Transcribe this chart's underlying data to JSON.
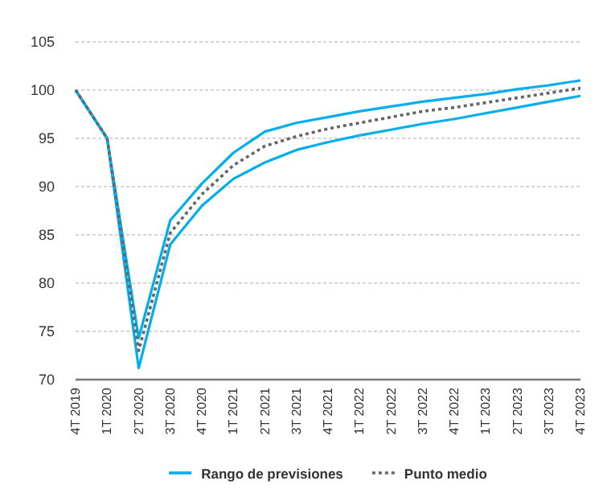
{
  "chart_data": {
    "type": "line",
    "categories": [
      "4T 2019",
      "1T 2020",
      "2T 2020",
      "3T 2020",
      "4T 2020",
      "1T 2021",
      "2T 2021",
      "3T 2021",
      "4T 2021",
      "1T 2022",
      "2T 2022",
      "3T 2022",
      "4T 2022",
      "1T 2023",
      "2T 2023",
      "3T 2023",
      "4T 2023"
    ],
    "series": [
      {
        "name": "Rango de previsiones",
        "color": "#00aeef",
        "line_style": "solid",
        "values": [
          100,
          95,
          74.3,
          86.5,
          90.3,
          93.5,
          95.7,
          96.6,
          97.2,
          97.8,
          98.3,
          98.8,
          99.2,
          99.6,
          100.1,
          100.5,
          101
        ]
      },
      {
        "color": "#00aeef",
        "line_style": "solid",
        "values": [
          100,
          95,
          71.2,
          84,
          88,
          90.8,
          92.5,
          93.8,
          94.6,
          95.3,
          95.9,
          96.5,
          97,
          97.6,
          98.2,
          98.8,
          99.4
        ]
      },
      {
        "name": "Punto medio",
        "color": "#666666",
        "line_style": "dotted",
        "values": [
          100,
          95,
          73,
          85.2,
          89.2,
          92.2,
          94.2,
          95.2,
          96,
          96.6,
          97.2,
          97.8,
          98.2,
          98.7,
          99.2,
          99.7,
          100.2
        ]
      }
    ],
    "ylim": [
      70,
      105
    ],
    "yticks": [
      70,
      75,
      80,
      85,
      90,
      95,
      100,
      105
    ],
    "grid": "y",
    "legend": "bottom",
    "marker": "none"
  }
}
